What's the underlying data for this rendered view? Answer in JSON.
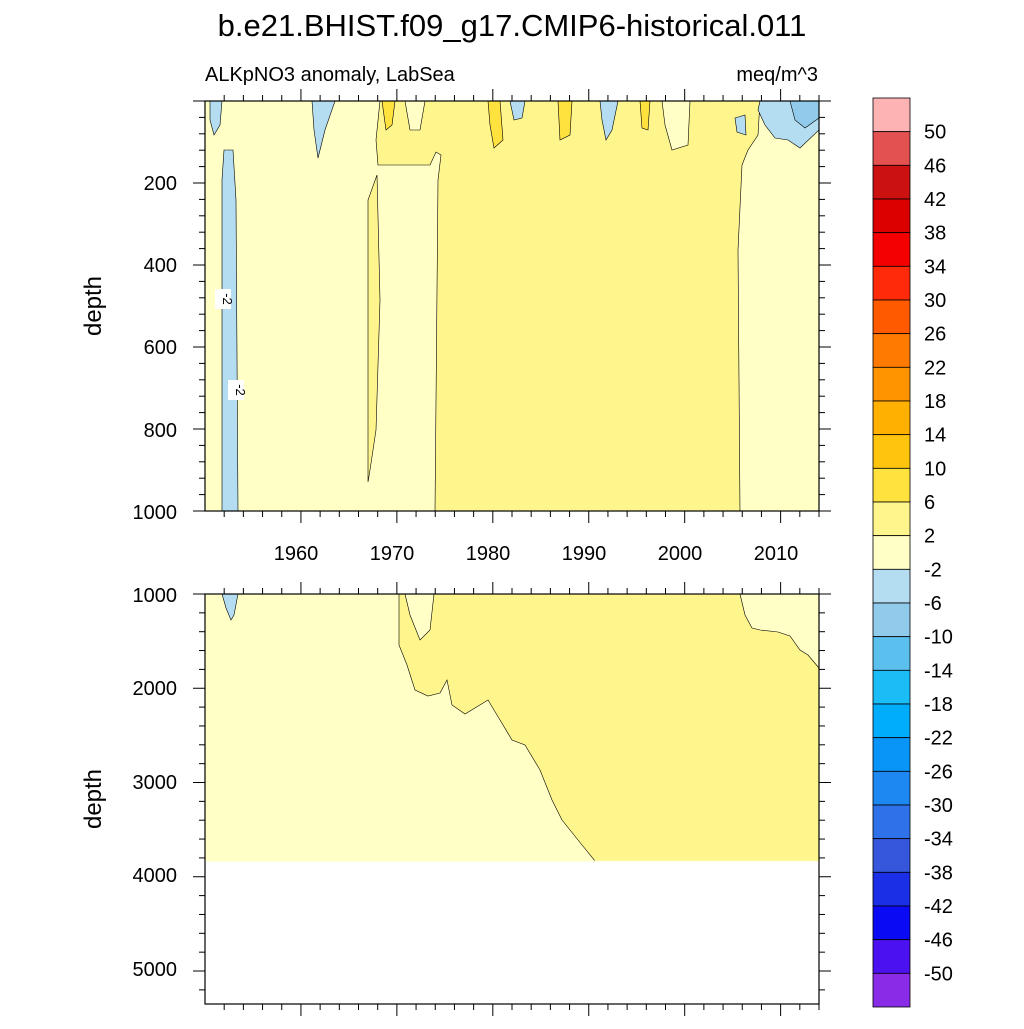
{
  "title": "b.e21.BHIST.f09_g17.CMIP6-historical.011",
  "colorbar": {
    "labels": [
      "50",
      "46",
      "42",
      "38",
      "34",
      "30",
      "26",
      "22",
      "18",
      "14",
      "10",
      "6",
      "2",
      "-2",
      "-6",
      "-10",
      "-14",
      "-18",
      "-22",
      "-26",
      "-30",
      "-34",
      "-38",
      "-42",
      "-46",
      "-50"
    ],
    "colors": [
      "#FDB3B3",
      "#E35151",
      "#CC1111",
      "#DD0000",
      "#F40000",
      "#FF2A0A",
      "#FF5A00",
      "#FF7A00",
      "#FF9400",
      "#FFB000",
      "#FFC50E",
      "#FFE23D",
      "#FFF58D",
      "#FFFFC6",
      "#B4DDF2",
      "#91CBEB",
      "#5BC0EE",
      "#1BBDF6",
      "#00ADFC",
      "#0994F8",
      "#1E88F2",
      "#2F71E9",
      "#3656DC",
      "#1B30E6",
      "#0A0AF4",
      "#4B11F0",
      "#8A2BE8"
    ]
  },
  "chart_data": [
    {
      "type": "contour",
      "subtitle_left": "ALKpNO3 anomaly, LabSea",
      "subtitle_right": "meq/m^3",
      "ylabel": "depth",
      "xlim": [
        1950,
        2014
      ],
      "ylim": [
        1000,
        0
      ],
      "yticks": [
        "200",
        "400",
        "600",
        "800",
        "1000"
      ],
      "xticks": [
        "1960",
        "1970",
        "1980",
        "1990",
        "2000",
        "2010"
      ],
      "contour_labels": [
        "-2",
        "-2"
      ],
      "regions": [
        {
          "level": "2 to 6",
          "x_range": [
            1976,
            2006
          ],
          "depth_range": [
            50,
            1000
          ]
        },
        {
          "level": "2 to 6",
          "x_range": [
            1967,
            1970
          ],
          "depth_range": [
            180,
            930
          ]
        },
        {
          "level": "-6 to -2",
          "x_range": [
            1952,
            1953.5
          ],
          "depth_range": [
            0,
            1000
          ]
        },
        {
          "level": "-2 to 2",
          "x_range": [
            1950,
            2014
          ],
          "depth_range": [
            0,
            1000
          ]
        }
      ]
    },
    {
      "type": "contour",
      "ylabel": "depth",
      "xlim": [
        1950,
        2014
      ],
      "ylim": [
        5350,
        1000
      ],
      "yticks": [
        "1000",
        "2000",
        "3000",
        "4000",
        "5000"
      ],
      "bottom_depth": 3870,
      "regions": [
        {
          "level": "2 to 6",
          "x_range": [
            1972,
            2014
          ],
          "depth_range": [
            1000,
            3870
          ]
        },
        {
          "level": "-2 to 2",
          "x_range": [
            1950,
            2014
          ],
          "depth_range": [
            1000,
            3870
          ]
        }
      ]
    }
  ]
}
